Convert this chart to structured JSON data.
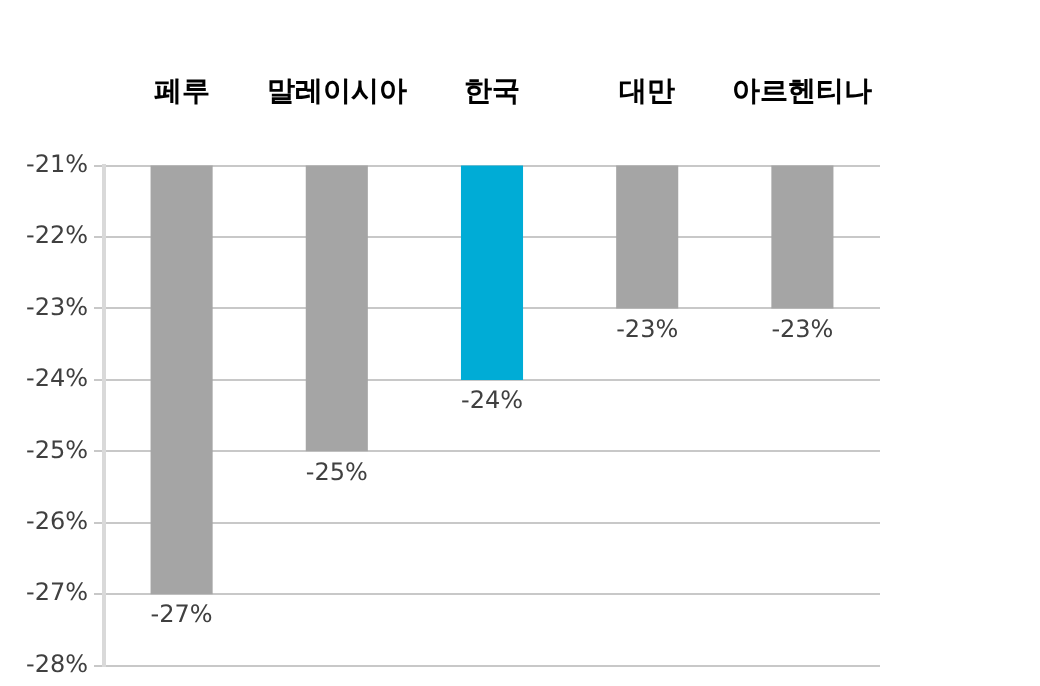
{
  "chart_data": {
    "type": "bar",
    "categories": [
      "페루",
      "말레이시아",
      "한국",
      "대만",
      "아르헨티나"
    ],
    "values": [
      -27,
      -25,
      -24,
      -23,
      -23
    ],
    "colors": [
      "#a5a5a5",
      "#a5a5a5",
      "#00acd6",
      "#a5a5a5",
      "#a5a5a5"
    ],
    "value_labels": [
      "-27%",
      "-25%",
      "-24%",
      "-23%",
      "-23%"
    ],
    "ylim": [
      -28,
      -21
    ],
    "yticks": [
      {
        "value": -21,
        "label": "-21%"
      },
      {
        "value": -22,
        "label": "-22%"
      },
      {
        "value": -23,
        "label": "-23%"
      },
      {
        "value": -24,
        "label": "-24%"
      },
      {
        "value": -25,
        "label": "-25%"
      },
      {
        "value": -26,
        "label": "-26%"
      },
      {
        "value": -27,
        "label": "-27%"
      },
      {
        "value": -28,
        "label": "-28%"
      }
    ],
    "grid": "y",
    "legend": false
  }
}
